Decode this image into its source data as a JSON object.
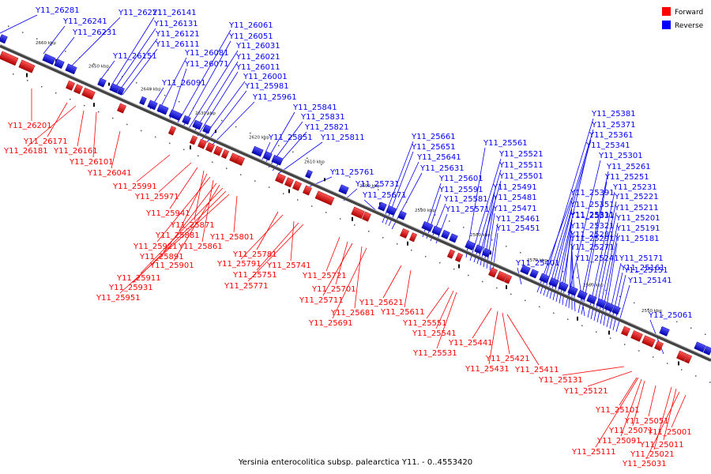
{
  "caption": "Yersinia enterocolitica subsp. palearctica Y11. - 0..4553420",
  "legend": [
    {
      "label": "Forward",
      "color": "#ff0000"
    },
    {
      "label": "Reverse",
      "color": "#0000ff"
    }
  ],
  "colors": {
    "forward": "#ff0000",
    "reverse": "#0000ff",
    "backbone": "#555555"
  },
  "ticks": [
    "2660 kbp",
    "2650 kbp",
    "2640 kbp",
    "2630 kbp",
    "2620 kbp",
    "2610 kbp",
    "2600 kbp",
    "2590 kbp",
    "2580 kbp",
    "2570 kbp",
    "2560 kbp",
    "2550 kbp"
  ],
  "reverse_labels": [
    "Y11_26281",
    "Y11_26241",
    "Y11_26231",
    "Y11_26221",
    "Y11_26151",
    "Y11_26141",
    "Y11_26131",
    "Y11_26121",
    "Y11_26111",
    "Y11_26091",
    "Y11_26081",
    "Y11_26071",
    "Y11_26061",
    "Y11_26051",
    "Y11_26031",
    "Y11_26021",
    "Y11_26011",
    "Y11_26001",
    "Y11_25981",
    "Y11_25961",
    "Y11_25851",
    "Y11_25841",
    "Y11_25831",
    "Y11_25821",
    "Y11_25811",
    "Y11_25761",
    "Y11_25731",
    "Y11_25671",
    "Y11_25661",
    "Y11_25651",
    "Y11_25641",
    "Y11_25631",
    "Y11_25601",
    "Y11_25591",
    "Y11_25581",
    "Y11_25571",
    "Y11_25561",
    "Y11_25521",
    "Y11_25511",
    "Y11_25501",
    "Y11_25491",
    "Y11_25481",
    "Y11_25471",
    "Y11_25461",
    "Y11_25451",
    "Y11_25401",
    "Y11_25391",
    "Y11_25381",
    "Y11_25371",
    "Y11_25361",
    "Y11_25351",
    "Y11_25341",
    "Y11_25331",
    "Y11_25321",
    "Y11_25311",
    "Y11_25301",
    "Y11_25291",
    "Y11_25281",
    "Y11_25271",
    "Y11_25261",
    "Y11_25251",
    "Y11_25241",
    "Y11_25231",
    "Y11_25221",
    "Y11_25211",
    "Y11_25201",
    "Y11_25191",
    "Y11_25181",
    "Y11_25171",
    "Y11_25161",
    "Y11_25151",
    "Y11_25141",
    "Y11_25061"
  ],
  "forward_labels": [
    "Y11_26201",
    "Y11_26171",
    "Y11_26181",
    "Y11_26161",
    "Y11_26101",
    "Y11_26041",
    "Y11_25991",
    "Y11_25971",
    "Y11_25941",
    "Y11_25871",
    "Y11_25881",
    "Y11_25921",
    "Y11_25861",
    "Y11_25891",
    "Y11_25901",
    "Y11_25911",
    "Y11_25931",
    "Y11_25951",
    "Y11_25801",
    "Y11_25781",
    "Y11_25791",
    "Y11_25741",
    "Y11_25751",
    "Y11_25771",
    "Y11_25721",
    "Y11_25701",
    "Y11_25711",
    "Y11_25681",
    "Y11_25691",
    "Y11_25621",
    "Y11_25611",
    "Y11_25551",
    "Y11_25541",
    "Y11_25531",
    "Y11_25441",
    "Y11_25431",
    "Y11_25421",
    "Y11_25411",
    "Y11_25131",
    "Y11_25121",
    "Y11_25101",
    "Y11_25051",
    "Y11_25071",
    "Y11_25091",
    "Y11_25111",
    "Y11_25011",
    "Y11_25021",
    "Y11_25001",
    "Y11_25031"
  ]
}
